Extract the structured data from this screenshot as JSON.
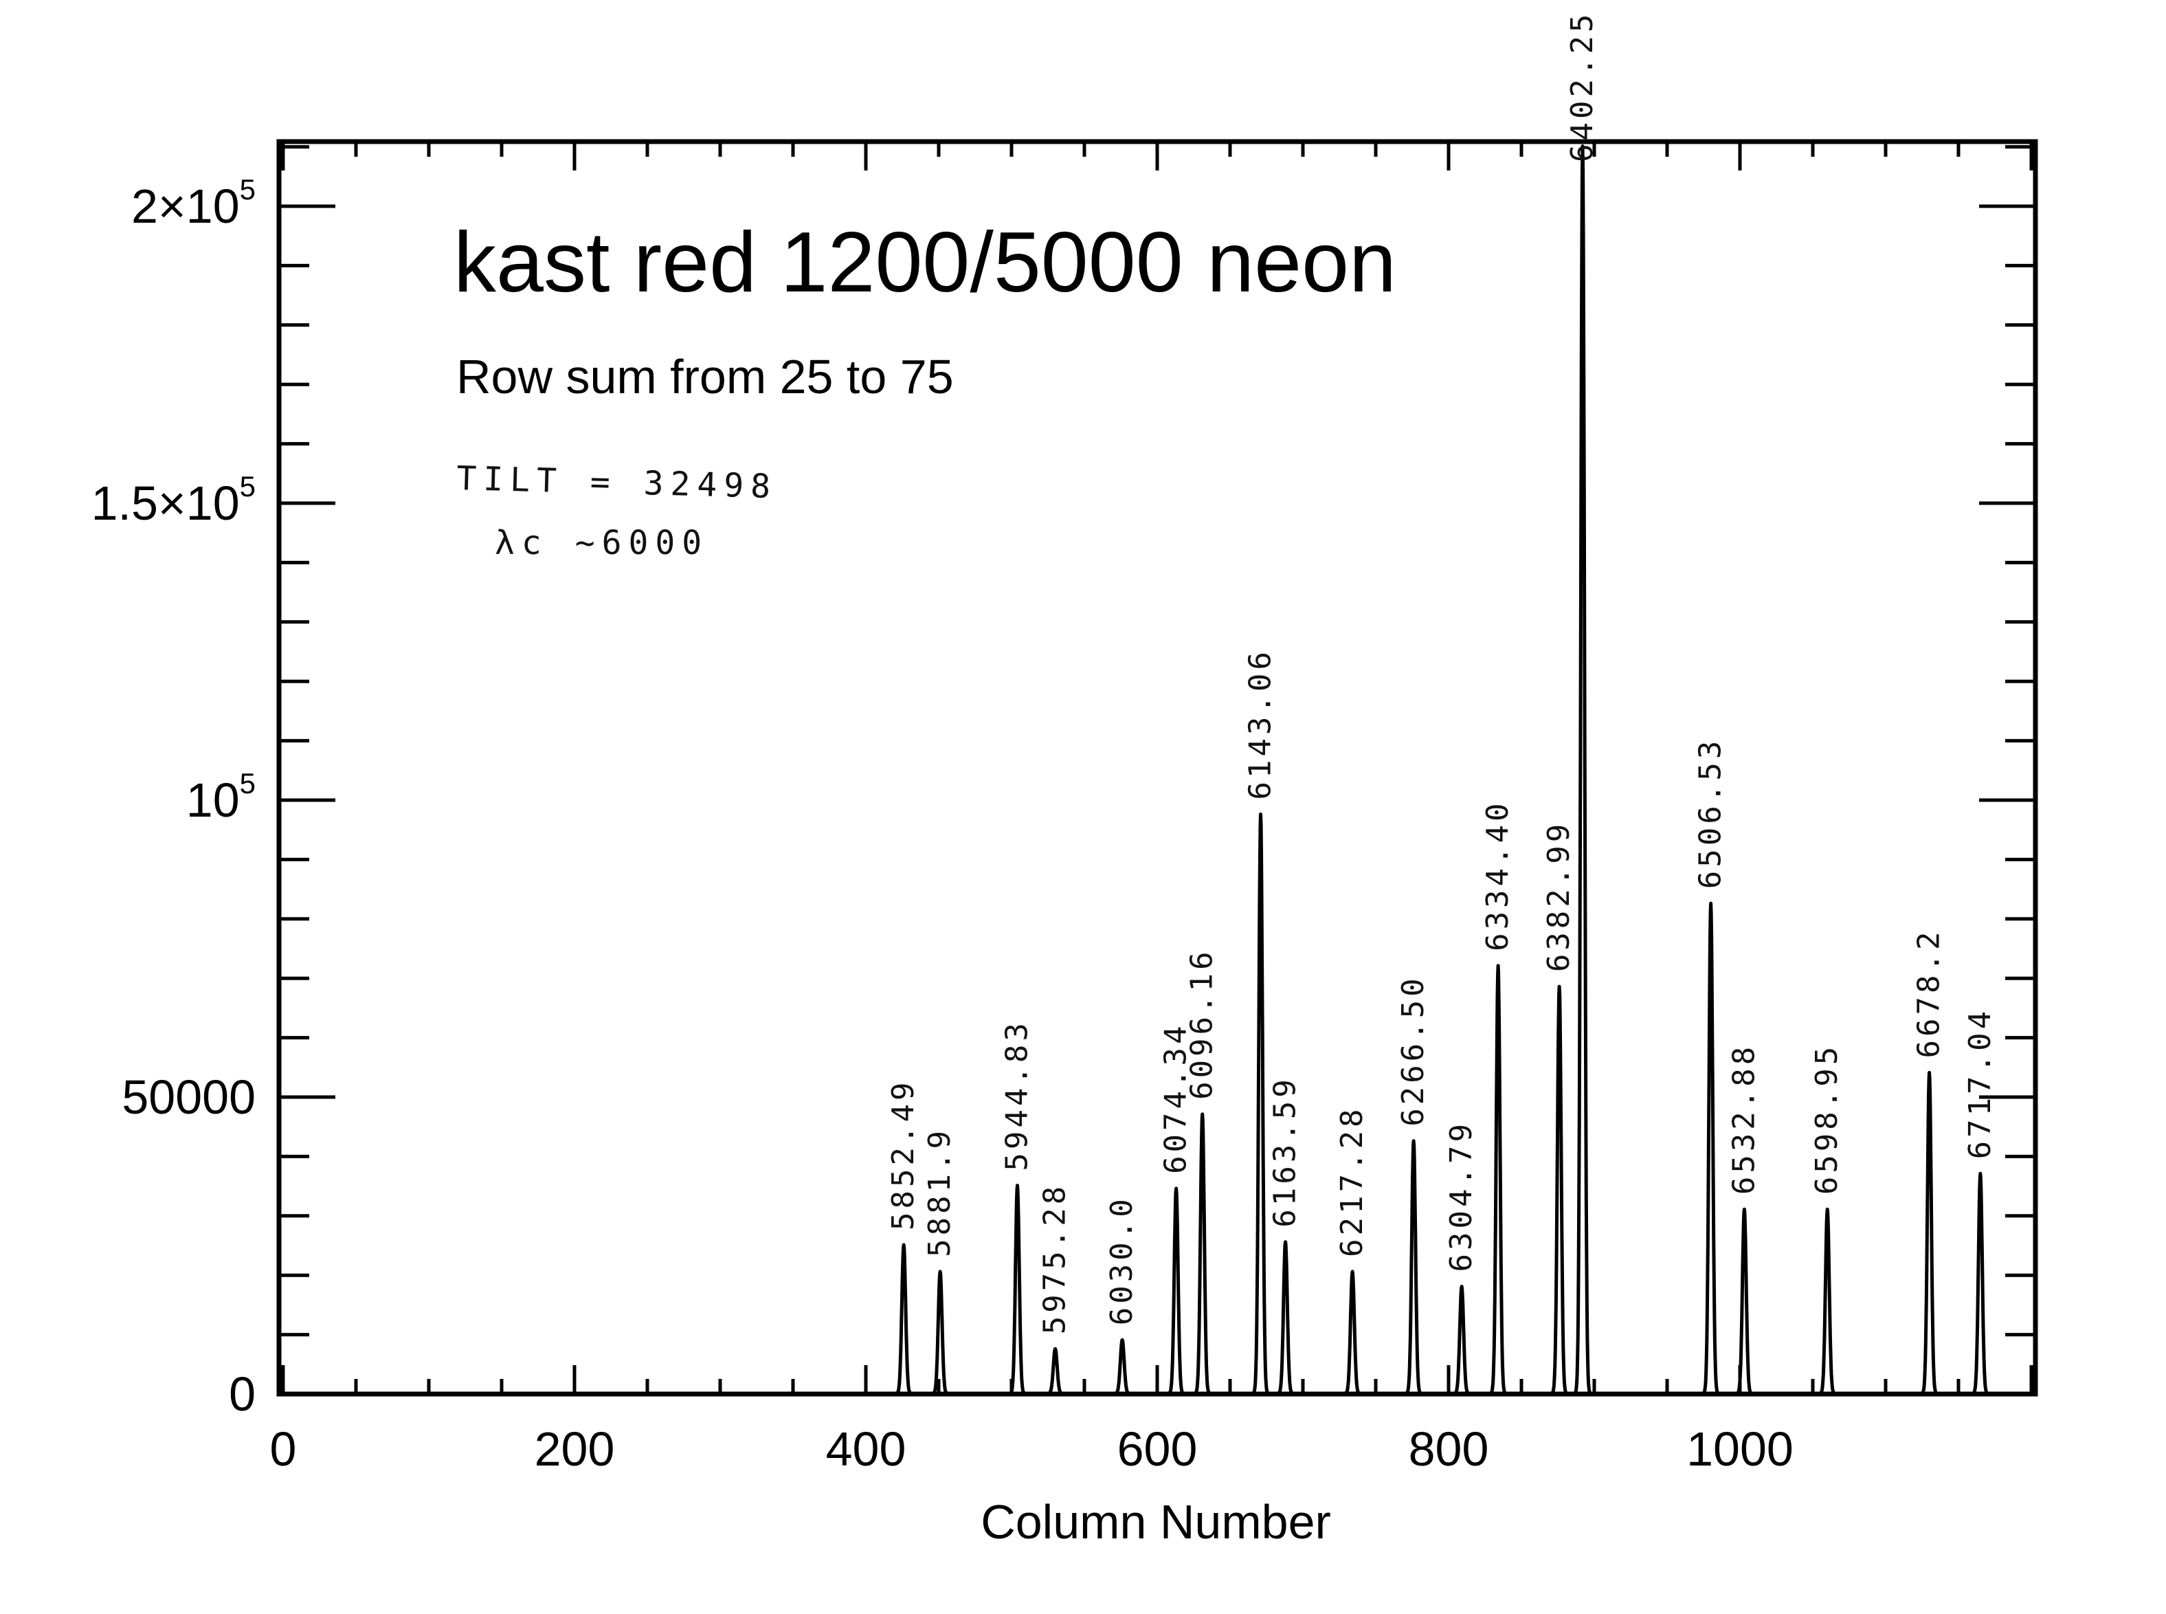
{
  "chart_data": {
    "type": "line",
    "title": "kast red 1200/5000 neon",
    "subtitle": "Row sum from 25 to 75",
    "xlabel": "Column Number",
    "ylabel": "",
    "xlim": [
      0,
      1200
    ],
    "ylim": [
      0,
      210000
    ],
    "grid": false,
    "x_ticks": [
      {
        "value": 0,
        "label": "0"
      },
      {
        "value": 200,
        "label": "200"
      },
      {
        "value": 400,
        "label": "400"
      },
      {
        "value": 600,
        "label": "600"
      },
      {
        "value": 800,
        "label": "800"
      },
      {
        "value": 1000,
        "label": "1000"
      }
    ],
    "y_ticks": [
      {
        "value": 0,
        "base": "0",
        "sup": ""
      },
      {
        "value": 50000,
        "base": "50000",
        "sup": ""
      },
      {
        "value": 100000,
        "base": "10",
        "sup": "5"
      },
      {
        "value": 150000,
        "base": "1.5×10",
        "sup": "5"
      },
      {
        "value": 200000,
        "base": "2×10",
        "sup": "5"
      }
    ],
    "annotations": [
      "TILT = 32498",
      "λc ~6000"
    ],
    "peaks": [
      {
        "x": 426,
        "y": 25000,
        "label": "5852.49"
      },
      {
        "x": 451,
        "y": 20500,
        "label": "5881.9"
      },
      {
        "x": 504,
        "y": 35000,
        "label": "5944.83"
      },
      {
        "x": 530,
        "y": 7500,
        "label": "5975.28"
      },
      {
        "x": 576,
        "y": 9000,
        "label": "6030.0"
      },
      {
        "x": 613,
        "y": 34500,
        "label": "6074.34"
      },
      {
        "x": 631,
        "y": 47000,
        "label": "6096.16"
      },
      {
        "x": 671,
        "y": 97500,
        "label": "6143.06"
      },
      {
        "x": 688,
        "y": 25500,
        "label": "6163.59"
      },
      {
        "x": 734,
        "y": 20500,
        "label": "6217.28"
      },
      {
        "x": 776,
        "y": 42500,
        "label": "6266.50"
      },
      {
        "x": 809,
        "y": 18000,
        "label": "6304.79"
      },
      {
        "x": 834,
        "y": 72000,
        "label": "6334.40"
      },
      {
        "x": 876,
        "y": 68500,
        "label": "6382.99"
      },
      {
        "x": 892,
        "y": 210000,
        "label": "6402.25"
      },
      {
        "x": 980,
        "y": 82500,
        "label": "6506.53"
      },
      {
        "x": 1003,
        "y": 31000,
        "label": "6532.88"
      },
      {
        "x": 1060,
        "y": 31000,
        "label": "6598.95"
      },
      {
        "x": 1130,
        "y": 54000,
        "label": "6678.2"
      },
      {
        "x": 1165,
        "y": 37000,
        "label": "6717.04"
      }
    ]
  }
}
